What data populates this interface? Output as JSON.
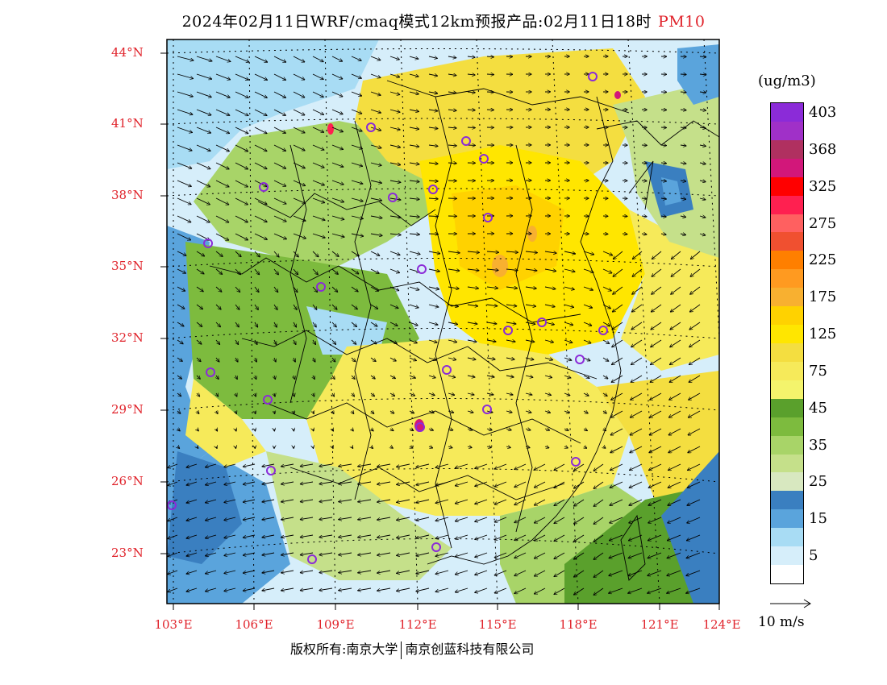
{
  "title": {
    "main": "2024年02月11日WRF/cmaq模式12km预报产品:02月11日18时",
    "pollutant": "PM10"
  },
  "map": {
    "lat_labels": [
      "44°N",
      "41°N",
      "38°N",
      "35°N",
      "32°N",
      "29°N",
      "26°N",
      "23°N"
    ],
    "lon_labels": [
      "103°E",
      "106°E",
      "109°E",
      "112°E",
      "115°E",
      "118°E",
      "121°E",
      "124°E"
    ]
  },
  "legend": {
    "unit": "(ug/m3)",
    "levels": [
      {
        "label": "403",
        "color": "#8b2bd8"
      },
      {
        "label": "",
        "color": "#a030c8"
      },
      {
        "label": "368",
        "color": "#b03060"
      },
      {
        "label": "",
        "color": "#d2177a"
      },
      {
        "label": "325",
        "color": "#ff0000"
      },
      {
        "label": "",
        "color": "#ff2050"
      },
      {
        "label": "275",
        "color": "#ff6060"
      },
      {
        "label": "",
        "color": "#f05030"
      },
      {
        "label": "225",
        "color": "#ff7f00"
      },
      {
        "label": "",
        "color": "#ff9a20"
      },
      {
        "label": "175",
        "color": "#f8b030"
      },
      {
        "label": "",
        "color": "#ffd200"
      },
      {
        "label": "125",
        "color": "#ffe600"
      },
      {
        "label": "",
        "color": "#f4de40"
      },
      {
        "label": "75",
        "color": "#f6ea5a"
      },
      {
        "label": "",
        "color": "#f4f46c"
      },
      {
        "label": "45",
        "color": "#5aa02c"
      },
      {
        "label": "",
        "color": "#7dbb3e"
      },
      {
        "label": "35",
        "color": "#a8d468"
      },
      {
        "label": "",
        "color": "#c5e08a"
      },
      {
        "label": "25",
        "color": "#d8e8c0"
      },
      {
        "label": "",
        "color": "#3a7fc0"
      },
      {
        "label": "15",
        "color": "#5aa4dc"
      },
      {
        "label": "",
        "color": "#a8dcf4"
      },
      {
        "label": "5",
        "color": "#d6eefa"
      },
      {
        "label": "",
        "color": "#ffffff"
      }
    ]
  },
  "wind_reference": {
    "label": "10 m/s"
  },
  "credit": {
    "left": "版权所有:南京大学",
    "right": "南京创蓝科技有限公司"
  }
}
